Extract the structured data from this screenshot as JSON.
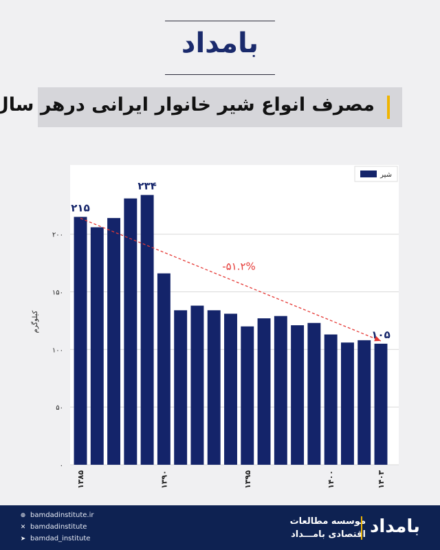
{
  "brand": {
    "logo_text": "بامداد",
    "accent": "#f0b400",
    "navy": "#14246a"
  },
  "header": {
    "title": "مصرف انواع شیر خانوار ایرانی درهر سال"
  },
  "chart_data": {
    "type": "bar",
    "title": "مصرف انواع شیر خانوار ایرانی درهر سال",
    "ylabel": "کیلوگرم",
    "xlabel": "",
    "legend": {
      "position": "top-right",
      "label": "شیر"
    },
    "ylim": [
      0,
      260
    ],
    "yticks": [
      "۰",
      "۵۰",
      "۱۰۰",
      "۱۵۰",
      "۲۰۰"
    ],
    "ytick_values": [
      0,
      50,
      100,
      150,
      200
    ],
    "grid": true,
    "x": [
      1385,
      1386,
      1387,
      1388,
      1389,
      1390,
      1391,
      1392,
      1393,
      1394,
      1395,
      1396,
      1397,
      1398,
      1399,
      1400,
      1401,
      1402,
      1403
    ],
    "xtick_labels": [
      {
        "year": 1385,
        "label": "۱۳۸۵"
      },
      {
        "year": 1390,
        "label": "۱۳۹۰"
      },
      {
        "year": 1395,
        "label": "۱۳۹۵"
      },
      {
        "year": 1400,
        "label": "۱۴۰۰"
      },
      {
        "year": 1403,
        "label": "۱۴۰۳"
      }
    ],
    "series": [
      {
        "name": "شیر",
        "color": "#14246a",
        "values": [
          215,
          206,
          214,
          231,
          234,
          166,
          134,
          138,
          134,
          131,
          120,
          127,
          129,
          121,
          123,
          113,
          106,
          108,
          105
        ]
      }
    ],
    "annotations": [
      {
        "text": "۲۱۵",
        "year": 1385
      },
      {
        "text": "۲۳۴",
        "year": 1389
      },
      {
        "text": "۱۰۵",
        "year": 1403
      },
      {
        "text": "-۵۱.۲%",
        "from_year": 1385,
        "to_year": 1403,
        "color": "#e53935"
      }
    ]
  },
  "footer": {
    "links": [
      {
        "icon": "globe-icon",
        "text": "bamdadinstitute.ir"
      },
      {
        "icon": "x-icon",
        "text": "bamdadinstitute"
      },
      {
        "icon": "telegram-icon",
        "text": "bamdad_institute"
      }
    ],
    "org_line1": "موسسه مطالعات",
    "org_line2": "اقتصادی بامـــداد",
    "logo_text": "بامداد"
  }
}
